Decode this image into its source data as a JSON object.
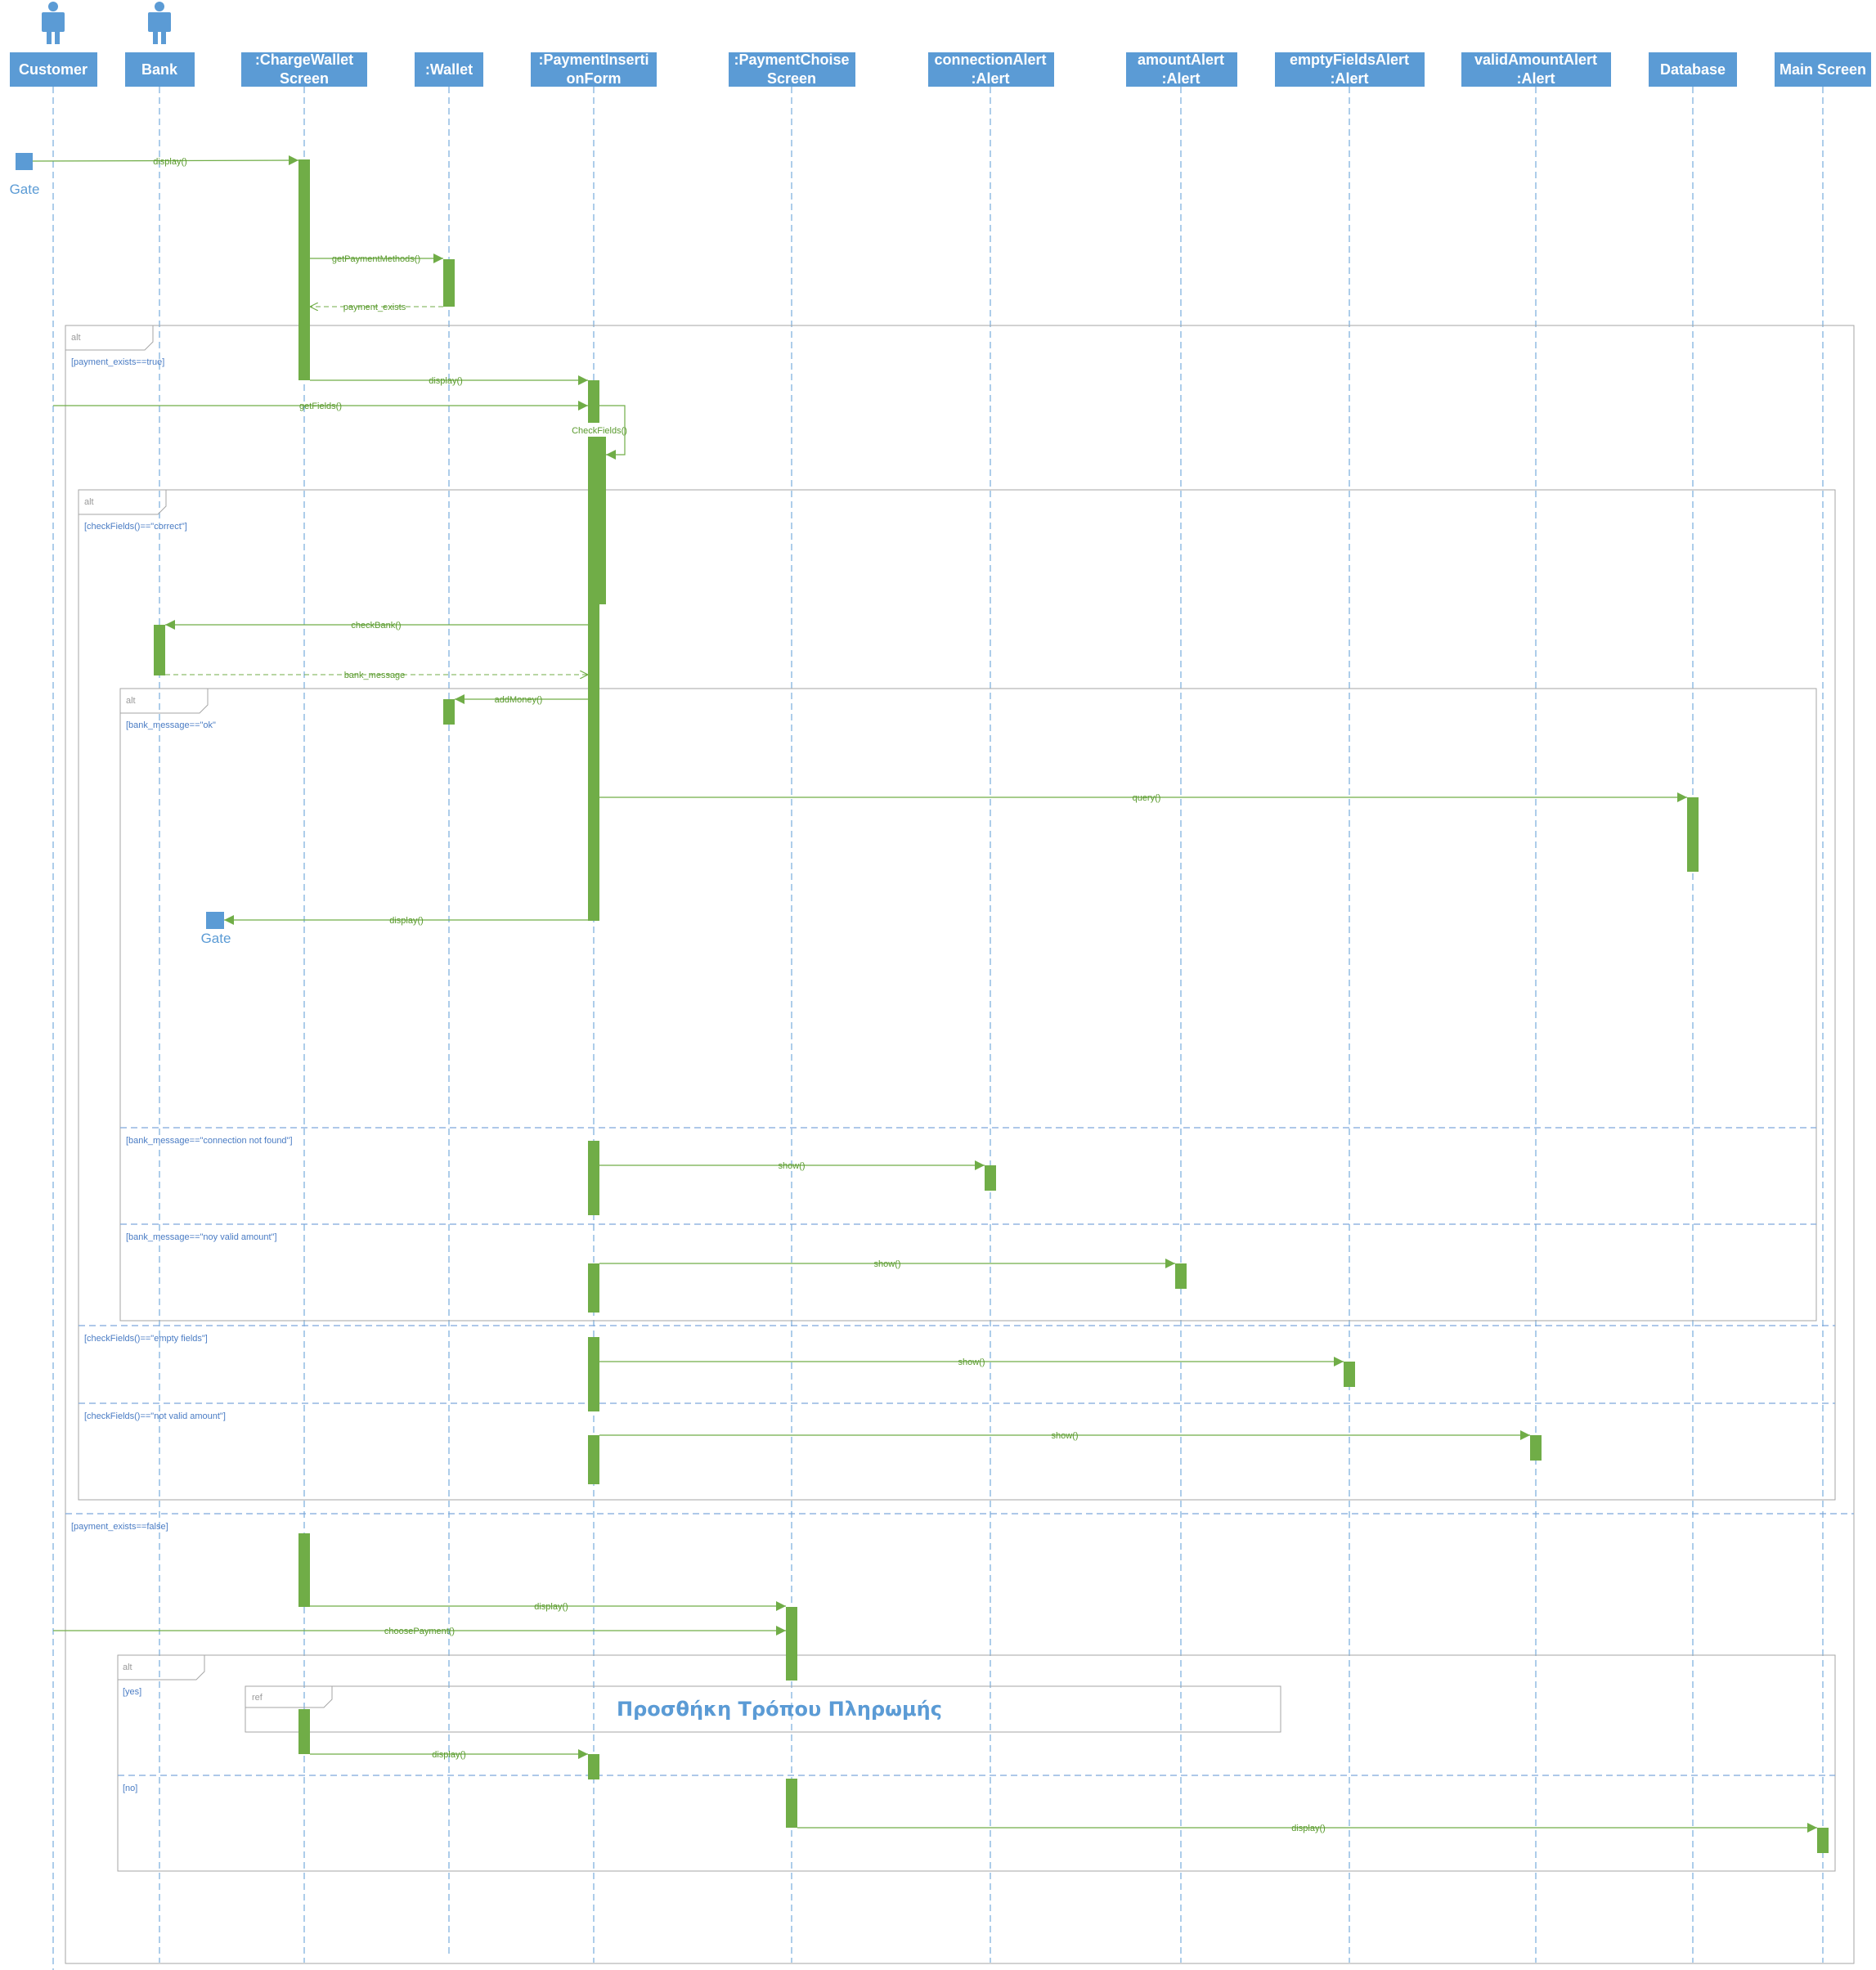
{
  "colors": {
    "header": "#5b9bd5",
    "lifeline": "#5b9bd5",
    "activation": "#70ad47",
    "message": "#70ad47",
    "frame": "#a6a6a6",
    "guard": "#4a7cc4",
    "ref_title": "#5b9bd5"
  },
  "actors": [
    {
      "id": "customer",
      "label": "Customer",
      "icon": "actor-icon"
    },
    {
      "id": "bank",
      "label": "Bank",
      "icon": "actor-icon"
    }
  ],
  "lifelines": [
    {
      "id": "customer",
      "line1": "Customer",
      "line2": ""
    },
    {
      "id": "bank",
      "line1": "Bank",
      "line2": ""
    },
    {
      "id": "chargewallet",
      "line1": ":ChargeWallet",
      "line2": "Screen"
    },
    {
      "id": "wallet",
      "line1": ":Wallet",
      "line2": ""
    },
    {
      "id": "paymentinsertion",
      "line1": ":PaymentInserti",
      "line2": "onForm"
    },
    {
      "id": "paymentchoise",
      "line1": ":PaymentChoise",
      "line2": "Screen"
    },
    {
      "id": "connectionalert",
      "line1": "connectionAlert",
      "line2": ":Alert"
    },
    {
      "id": "amountalert",
      "line1": "amountAlert",
      "line2": ":Alert"
    },
    {
      "id": "emptyfieldsalert",
      "line1": "emptyFieldsAlert",
      "line2": ":Alert"
    },
    {
      "id": "validamountalert",
      "line1": "validAmountAlert",
      "line2": ":Alert"
    },
    {
      "id": "database",
      "line1": "Database",
      "line2": ""
    },
    {
      "id": "mainscreen",
      "line1": "Main Screen",
      "line2": ""
    }
  ],
  "gates": [
    "Gate",
    "Gate"
  ],
  "messages": [
    {
      "label": "display()",
      "from": "gate1",
      "to": "chargewallet",
      "kind": "sync"
    },
    {
      "label": "getPaymentMethods()",
      "from": "chargewallet",
      "to": "wallet",
      "kind": "sync"
    },
    {
      "label": "payment_exists",
      "from": "wallet",
      "to": "chargewallet",
      "kind": "reply"
    },
    {
      "label": "display()",
      "from": "chargewallet",
      "to": "paymentinsertion",
      "kind": "sync"
    },
    {
      "label": "getFields()",
      "from": "customer",
      "to": "paymentinsertion",
      "kind": "sync"
    },
    {
      "label": "CheckFields()",
      "from": "paymentinsertion",
      "to": "paymentinsertion",
      "kind": "self"
    },
    {
      "label": "checkBank()",
      "from": "paymentinsertion",
      "to": "bank",
      "kind": "sync"
    },
    {
      "label": "bank_message",
      "from": "bank",
      "to": "paymentinsertion",
      "kind": "reply"
    },
    {
      "label": "addMoney()",
      "from": "paymentinsertion",
      "to": "wallet",
      "kind": "sync"
    },
    {
      "label": "query()",
      "from": "paymentinsertion",
      "to": "database",
      "kind": "sync"
    },
    {
      "label": "display()",
      "from": "paymentinsertion",
      "to": "gate2",
      "kind": "sync"
    },
    {
      "label": "show()",
      "from": "paymentinsertion",
      "to": "connectionalert",
      "kind": "sync"
    },
    {
      "label": "show()",
      "from": "paymentinsertion",
      "to": "amountalert",
      "kind": "sync"
    },
    {
      "label": "show()",
      "from": "paymentinsertion",
      "to": "emptyfieldsalert",
      "kind": "sync"
    },
    {
      "label": "show()",
      "from": "paymentinsertion",
      "to": "validamountalert",
      "kind": "sync"
    },
    {
      "label": "display()",
      "from": "chargewallet",
      "to": "paymentchoise",
      "kind": "sync"
    },
    {
      "label": "choosePayment()",
      "from": "customer",
      "to": "paymentchoise",
      "kind": "sync"
    },
    {
      "label": "display()",
      "from": "chargewallet",
      "to": "paymentinsertion",
      "kind": "sync"
    },
    {
      "label": "display()",
      "from": "paymentchoise",
      "to": "mainscreen",
      "kind": "sync"
    }
  ],
  "frames": [
    {
      "operator": "alt",
      "guards": [
        "[payment_exists==true]",
        "[payment_exists==false]"
      ]
    },
    {
      "operator": "alt",
      "guards": [
        "[checkFields()==\"correct\"]",
        "[checkFields()==\"empty fields\"]",
        "[checkFields()==\"not valid amount\"]"
      ]
    },
    {
      "operator": "alt",
      "guards": [
        "[bank_message==\"ok\"",
        "[bank_message==\"connection not found\"]",
        "[bank_message==\"noy valid amount\"]"
      ]
    },
    {
      "operator": "alt",
      "guards": [
        "[yes]",
        "[no]"
      ]
    }
  ],
  "ref": {
    "operator": "ref",
    "title": "Προσθήκη Τρόπου Πληρωμής"
  }
}
